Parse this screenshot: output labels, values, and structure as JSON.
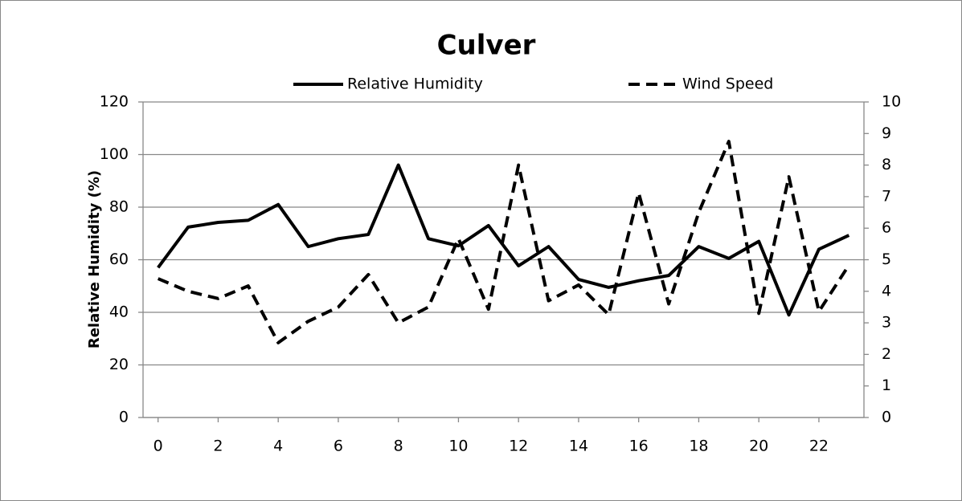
{
  "chart_data": {
    "type": "line",
    "title": "Culver",
    "y_label": "Relative Humidity (%)",
    "x": [
      0,
      1,
      2,
      3,
      4,
      5,
      6,
      7,
      8,
      9,
      10,
      11,
      12,
      13,
      14,
      15,
      16,
      17,
      18,
      19,
      20,
      21,
      22,
      23
    ],
    "series": [
      {
        "name": "Relative Humidity",
        "color": "#000000",
        "dash": "solid",
        "axis": "y",
        "values": [
          57,
          72.4,
          74.2,
          75,
          81,
          65,
          68,
          69.6,
          96,
          68,
          65.3,
          73,
          57.7,
          65,
          52.5,
          49.5,
          52,
          54,
          65,
          60.5,
          67,
          39,
          64,
          69.3
        ]
      },
      {
        "name": "Wind Speed",
        "color": "#000000",
        "dash": "dashed",
        "axis": "y2",
        "values": [
          4.4,
          4.0,
          3.77,
          4.17,
          2.37,
          3.05,
          3.5,
          4.53,
          3.0,
          3.5,
          5.67,
          3.43,
          8.0,
          3.7,
          4.2,
          3.26,
          7.12,
          3.6,
          6.5,
          8.75,
          3.3,
          7.63,
          3.36,
          4.83
        ]
      }
    ],
    "xlim": [
      -0.5,
      23.5
    ],
    "xticks": [
      0,
      2,
      4,
      6,
      8,
      10,
      12,
      14,
      16,
      18,
      20,
      22
    ],
    "ylim": [
      0,
      120
    ],
    "yticks": [
      0,
      20,
      40,
      60,
      80,
      100,
      120
    ],
    "y2lim": [
      0,
      10
    ],
    "y2ticks": [
      0,
      1,
      2,
      3,
      4,
      5,
      6,
      7,
      8,
      9,
      10
    ],
    "grid": true,
    "legend": "top"
  }
}
